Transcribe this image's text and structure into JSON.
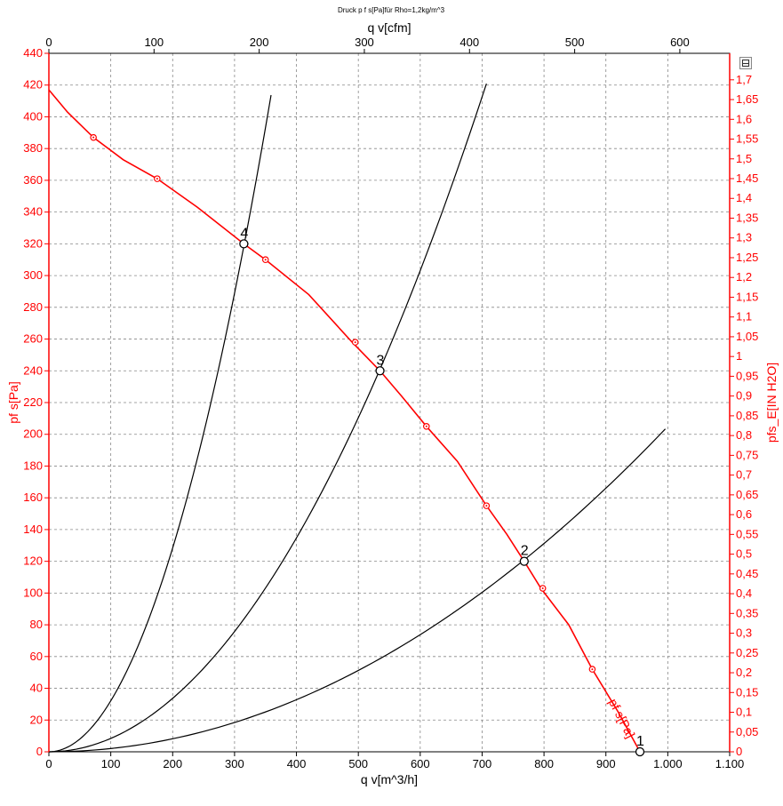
{
  "chart_data": {
    "type": "line",
    "title": "Druck p f s[Pa]für Rho=1,2kg/m^3",
    "xlabel": "q v[m^3/h]",
    "x2label": "q v[cfm]",
    "ylabel": "pf s[Pa]",
    "y2label": "pfs_E[IN H2O]",
    "xlim": [
      0,
      1100
    ],
    "ylim": [
      0,
      440
    ],
    "x2lim": [
      0,
      647.4
    ],
    "y2lim": [
      0,
      1.767
    ],
    "grid": true,
    "x_ticks": [
      "0",
      "100",
      "200",
      "300",
      "400",
      "500",
      "600",
      "700",
      "800",
      "900",
      "1.000",
      "1.100"
    ],
    "x2_ticks": [
      "0",
      "100",
      "200",
      "300",
      "400",
      "500",
      "600"
    ],
    "y_ticks": [
      "0",
      "20",
      "40",
      "60",
      "80",
      "100",
      "120",
      "140",
      "160",
      "180",
      "200",
      "220",
      "240",
      "260",
      "280",
      "300",
      "320",
      "340",
      "360",
      "380",
      "400",
      "420",
      "440"
    ],
    "y2_ticks": [
      "0",
      "0,05",
      "0,1",
      "0,15",
      "0,2",
      "0,25",
      "0,3",
      "0,35",
      "0,4",
      "0,45",
      "0,5",
      "0,55",
      "0,6",
      "0,65",
      "0,7",
      "0,75",
      "0,8",
      "0,85",
      "0,9",
      "0,95",
      "1",
      "1,05",
      "1,1",
      "1,15",
      "1,2",
      "1,25",
      "1,3",
      "1,35",
      "1,4",
      "1,45",
      "1,5",
      "1,55",
      "1,6",
      "1,65",
      "1,7"
    ],
    "series": [
      {
        "name": "pf s[Pa]",
        "color": "#ff0000",
        "x": [
          0,
          30,
          72,
          120,
          175,
          240,
          315,
          350,
          420,
          490,
          535,
          570,
          610,
          660,
          707,
          740,
          768,
          795,
          840,
          878,
          920,
          955
        ],
        "y": [
          417,
          403,
          387,
          373,
          361,
          343,
          320,
          310,
          288,
          258,
          240,
          224,
          205,
          183,
          155,
          137,
          120,
          103,
          80,
          52,
          25,
          0
        ],
        "markers_x": [
          72,
          175,
          350,
          495,
          610,
          707,
          798,
          878
        ],
        "markers_y": [
          387,
          361,
          310,
          258,
          205,
          155,
          103,
          52
        ]
      },
      {
        "name": "",
        "color": "#000000",
        "type": "system_curve",
        "k": 0.00321,
        "x_max": 359
      },
      {
        "name": "",
        "color": "#000000",
        "type": "system_curve",
        "k": 0.000842,
        "x_max": 707
      },
      {
        "name": "",
        "color": "#000000",
        "type": "system_curve",
        "k": 0.000205,
        "x_max": 996
      }
    ],
    "operating_points": [
      {
        "label": "1",
        "x": 955,
        "y": 0
      },
      {
        "label": "2",
        "x": 768,
        "y": 120
      },
      {
        "label": "3",
        "x": 535,
        "y": 240
      },
      {
        "label": "4",
        "x": 315,
        "y": 320
      }
    ],
    "curve_annotation": "pf s[Pa]"
  }
}
